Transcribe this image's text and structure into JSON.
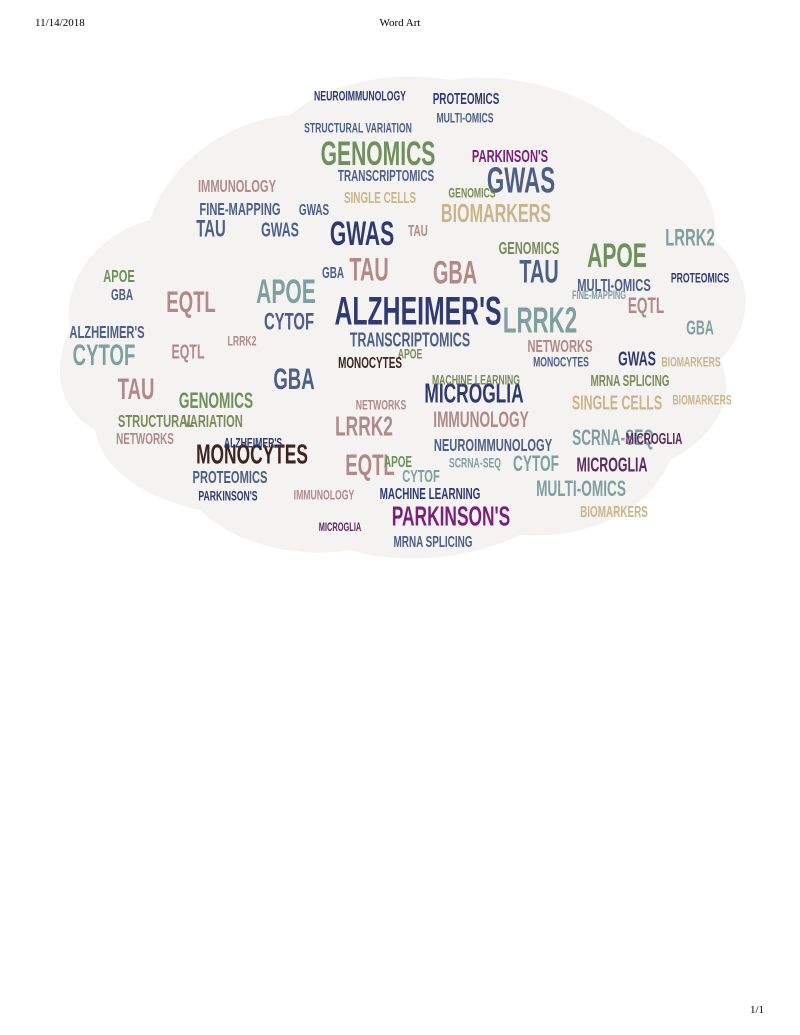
{
  "header": {
    "date": "11/14/2018",
    "title": "Word Art"
  },
  "footer": {
    "page": "1/1"
  },
  "colors": {
    "navy": "#2f3a70",
    "sage": "#6f8f5c",
    "mauve": "#b08a8a",
    "plum": "#5b2a5e",
    "purple": "#7a1f7a",
    "tan": "#c9b58a",
    "teal": "#7f9fa0",
    "brown": "#3d2420",
    "slate": "#4d5f85",
    "olive": "#7a8a5a"
  },
  "word_cloud": {
    "words": [
      {
        "text": "ALZHEIMER'S",
        "color": "navy"
      },
      {
        "text": "GENOMICS",
        "color": "sage"
      },
      {
        "text": "PARKINSON'S",
        "color": "purple"
      },
      {
        "text": "MONOCYTES",
        "color": "brown"
      },
      {
        "text": "GWAS",
        "color": "slate"
      },
      {
        "text": "GWAS",
        "color": "navy"
      },
      {
        "text": "BIOMARKERS",
        "color": "tan"
      },
      {
        "text": "TRANSCRIPTOMICS",
        "color": "slate"
      },
      {
        "text": "APOE",
        "color": "sage"
      },
      {
        "text": "APOE",
        "color": "teal"
      },
      {
        "text": "GBA",
        "color": "mauve"
      },
      {
        "text": "GBA",
        "color": "slate"
      },
      {
        "text": "TAU",
        "color": "mauve"
      },
      {
        "text": "TAU",
        "color": "slate"
      },
      {
        "text": "LRRK2",
        "color": "teal"
      },
      {
        "text": "LRRK2",
        "color": "mauve"
      },
      {
        "text": "EQTL",
        "color": "mauve"
      },
      {
        "text": "EQTL",
        "color": "mauve"
      },
      {
        "text": "CYTOF",
        "color": "teal"
      },
      {
        "text": "CYTOF",
        "color": "slate"
      },
      {
        "text": "MICROGLIA",
        "color": "navy"
      },
      {
        "text": "MICROGLIA",
        "color": "plum"
      },
      {
        "text": "IMMUNOLOGY",
        "color": "mauve"
      },
      {
        "text": "IMMUNOLOGY",
        "color": "mauve"
      },
      {
        "text": "NETWORKS",
        "color": "mauve"
      },
      {
        "text": "NETWORKS",
        "color": "mauve"
      },
      {
        "text": "MULTI-OMICS",
        "color": "teal"
      },
      {
        "text": "MULTI-OMICS",
        "color": "slate"
      },
      {
        "text": "SCRNA-SEQ",
        "color": "teal"
      },
      {
        "text": "SINGLE CELLS",
        "color": "tan"
      },
      {
        "text": "FINE-MAPPING",
        "color": "slate"
      },
      {
        "text": "PROTEOMICS",
        "color": "slate"
      },
      {
        "text": "PROTEOMICS",
        "color": "navy"
      },
      {
        "text": "NEUROIMMUNOLOGY",
        "color": "slate"
      },
      {
        "text": "NEUROIMMUNOLOGY",
        "color": "navy"
      },
      {
        "text": "MACHINE LEARNING",
        "color": "olive"
      },
      {
        "text": "MACHINE LEARNING",
        "color": "navy"
      },
      {
        "text": "STRUCTURAL VARIATION",
        "color": "slate"
      },
      {
        "text": "STRUCTURAL",
        "color": "olive"
      },
      {
        "text": "VARIATION",
        "color": "olive"
      },
      {
        "text": "MRNA SPLICING",
        "color": "olive"
      },
      {
        "text": "MRNA SPLICING",
        "color": "slate"
      },
      {
        "text": "ALZHEIMER'S",
        "color": "navy"
      },
      {
        "text": "PARKINSON'S",
        "color": "purple"
      },
      {
        "text": "PARKINSON'S",
        "color": "navy"
      },
      {
        "text": "GENOMICS",
        "color": "sage"
      },
      {
        "text": "GENOMICS",
        "color": "olive"
      },
      {
        "text": "BIOMARKERS",
        "color": "tan"
      },
      {
        "text": "BIOMARKERS",
        "color": "tan"
      },
      {
        "text": "APOE",
        "color": "olive"
      },
      {
        "text": "APOE",
        "color": "sage"
      },
      {
        "text": "GBA",
        "color": "slate"
      },
      {
        "text": "GBA",
        "color": "teal"
      },
      {
        "text": "TAU",
        "color": "mauve"
      },
      {
        "text": "TAU",
        "color": "slate"
      },
      {
        "text": "GWAS",
        "color": "slate"
      },
      {
        "text": "GWAS",
        "color": "navy"
      },
      {
        "text": "CYTOF",
        "color": "teal"
      },
      {
        "text": "EQTL",
        "color": "mauve"
      },
      {
        "text": "LRRK2",
        "color": "teal"
      },
      {
        "text": "MONOCYTES",
        "color": "slate"
      },
      {
        "text": "MONOCYTES",
        "color": "brown"
      },
      {
        "text": "MICROGLIA",
        "color": "plum"
      },
      {
        "text": "SCRNA-SEQ",
        "color": "teal"
      },
      {
        "text": "SINGLE CELLS",
        "color": "tan"
      },
      {
        "text": "FINE-MAPPING",
        "color": "teal"
      },
      {
        "text": "TRANSCRIPTOMICS",
        "color": "slate"
      },
      {
        "text": "IMMUNOLOGY",
        "color": "mauve"
      },
      {
        "text": "NETWORKS",
        "color": "mauve"
      },
      {
        "text": "PROTEOMICS",
        "color": "navy"
      },
      {
        "text": "MULTI-OMICS",
        "color": "slate"
      },
      {
        "text": "ALZHEIMER'S",
        "color": "slate"
      },
      {
        "text": "GENOMICS",
        "color": "olive"
      },
      {
        "text": "APOE",
        "color": "sage"
      },
      {
        "text": "GBA",
        "color": "slate"
      },
      {
        "text": "TAU",
        "color": "mauve"
      },
      {
        "text": "GWAS",
        "color": "slate"
      },
      {
        "text": "EQTL",
        "color": "mauve"
      },
      {
        "text": "LRRK2",
        "color": "mauve"
      },
      {
        "text": "CYTOF",
        "color": "teal"
      },
      {
        "text": "MICROGLIA",
        "color": "plum"
      },
      {
        "text": "BIOMARKERS",
        "color": "tan"
      }
    ]
  }
}
